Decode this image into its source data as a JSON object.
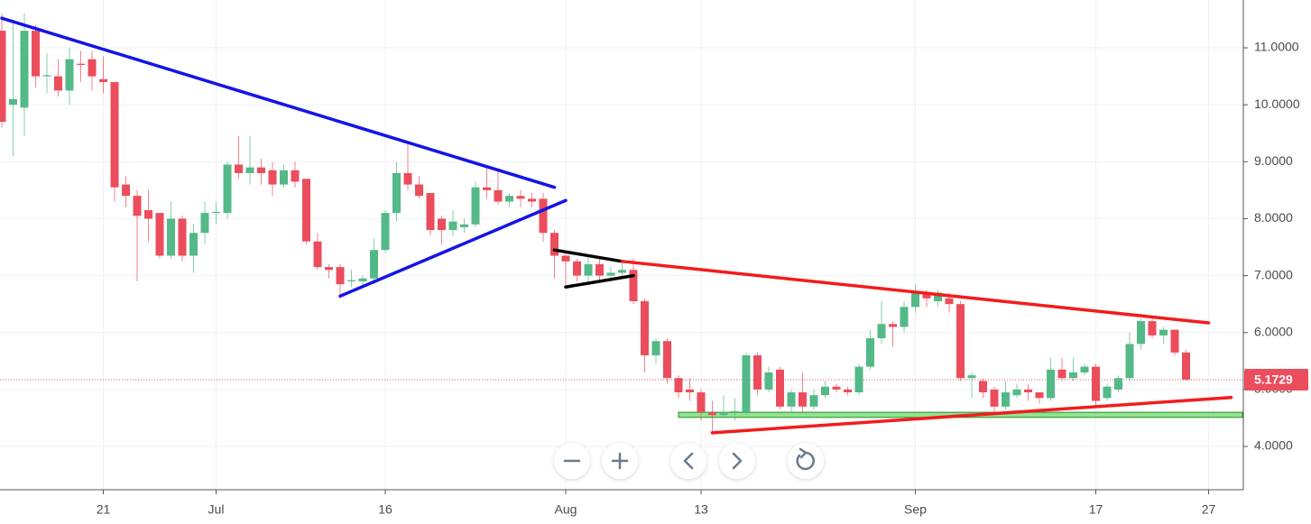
{
  "chart_data": {
    "type": "candlestick",
    "x": [
      "06-12",
      "06-13",
      "06-14",
      "06-15",
      "06-16",
      "06-17",
      "06-18",
      "06-19",
      "06-20",
      "06-21",
      "06-22",
      "06-23",
      "06-24",
      "06-25",
      "06-26",
      "06-27",
      "06-28",
      "06-29",
      "06-30",
      "07-01",
      "07-02",
      "07-03",
      "07-04",
      "07-05",
      "07-06",
      "07-07",
      "07-08",
      "07-09",
      "07-10",
      "07-11",
      "07-12",
      "07-13",
      "07-14",
      "07-15",
      "07-16",
      "07-17",
      "07-18",
      "07-19",
      "07-20",
      "07-21",
      "07-22",
      "07-23",
      "07-24",
      "07-25",
      "07-26",
      "07-27",
      "07-28",
      "07-29",
      "07-30",
      "07-31",
      "08-01",
      "08-02",
      "08-03",
      "08-04",
      "08-05",
      "08-06",
      "08-07",
      "08-08",
      "08-09",
      "08-10",
      "08-11",
      "08-12",
      "08-13",
      "08-14",
      "08-15",
      "08-16",
      "08-17",
      "08-18",
      "08-19",
      "08-20",
      "08-21",
      "08-22",
      "08-23",
      "08-24",
      "08-25",
      "08-26",
      "08-27",
      "08-28",
      "08-29",
      "08-30",
      "08-31",
      "09-01",
      "09-02",
      "09-03",
      "09-04",
      "09-05",
      "09-06",
      "09-07",
      "09-08",
      "09-09",
      "09-10",
      "09-11",
      "09-12",
      "09-13",
      "09-14",
      "09-15",
      "09-16",
      "09-17",
      "09-18",
      "09-19",
      "09-20",
      "09-21",
      "09-22",
      "09-23",
      "09-24",
      "09-25"
    ],
    "open": [
      11.3,
      10.0,
      9.95,
      11.3,
      10.5,
      10.5,
      10.25,
      10.72,
      10.8,
      10.45,
      10.4,
      8.6,
      8.4,
      8.15,
      8.1,
      7.35,
      8.0,
      7.35,
      7.75,
      8.1,
      8.1,
      8.95,
      8.8,
      8.9,
      8.85,
      8.6,
      8.85,
      8.7,
      7.6,
      7.15,
      7.15,
      6.9,
      6.9,
      6.95,
      7.45,
      8.1,
      8.8,
      8.6,
      8.45,
      8.0,
      7.8,
      7.85,
      7.9,
      8.55,
      8.5,
      8.3,
      8.4,
      8.35,
      8.35,
      7.75,
      7.35,
      7.25,
      7.0,
      7.2,
      7.0,
      7.05,
      7.1,
      6.55,
      5.6,
      5.85,
      5.2,
      5.0,
      4.95,
      4.6,
      4.55,
      4.6,
      4.6,
      5.6,
      5.0,
      5.35,
      4.7,
      4.95,
      4.7,
      4.9,
      5.05,
      5.0,
      4.95,
      5.4,
      5.9,
      6.15,
      6.1,
      6.45,
      6.7,
      6.55,
      6.6,
      6.5,
      5.2,
      5.15,
      5.0,
      4.7,
      4.9,
      5.0,
      4.95,
      4.85,
      5.35,
      5.2,
      5.3,
      5.4,
      4.85,
      5.0,
      5.2,
      5.8,
      6.2,
      5.95,
      6.05,
      5.65
    ],
    "high": [
      11.6,
      11.5,
      11.6,
      11.4,
      10.9,
      10.8,
      11.0,
      10.95,
      10.95,
      10.85,
      10.4,
      8.75,
      8.5,
      8.5,
      8.1,
      8.3,
      8.05,
      7.9,
      8.3,
      8.3,
      9.0,
      9.45,
      9.45,
      9.05,
      9.0,
      8.95,
      9.0,
      8.7,
      7.75,
      7.2,
      7.2,
      7.1,
      7.0,
      7.65,
      8.15,
      9.0,
      9.35,
      8.75,
      8.45,
      8.05,
      8.15,
      8.0,
      8.65,
      8.9,
      8.85,
      8.45,
      8.5,
      8.45,
      8.45,
      7.8,
      7.4,
      7.3,
      7.35,
      7.3,
      7.15,
      7.25,
      7.3,
      6.6,
      5.9,
      5.9,
      5.25,
      5.2,
      5.0,
      4.8,
      4.9,
      4.85,
      5.65,
      5.65,
      5.4,
      5.4,
      5.0,
      5.3,
      5.0,
      5.15,
      5.1,
      5.05,
      5.45,
      6.05,
      6.55,
      6.2,
      6.55,
      6.85,
      6.75,
      6.75,
      6.7,
      6.55,
      5.3,
      5.2,
      5.05,
      5.15,
      5.1,
      5.1,
      4.95,
      5.55,
      5.55,
      5.55,
      5.45,
      5.45,
      5.1,
      5.25,
      6.0,
      6.25,
      6.3,
      6.1,
      6.05,
      5.7
    ],
    "low": [
      9.6,
      9.1,
      9.45,
      10.3,
      10.2,
      10.15,
      10.0,
      10.4,
      10.25,
      10.2,
      8.3,
      8.2,
      6.9,
      7.6,
      7.3,
      7.3,
      7.25,
      7.05,
      7.55,
      7.9,
      8.0,
      8.7,
      8.6,
      8.6,
      8.4,
      8.55,
      8.55,
      7.55,
      7.1,
      6.95,
      6.6,
      6.8,
      6.8,
      6.85,
      7.4,
      7.95,
      8.5,
      8.35,
      7.7,
      7.55,
      7.7,
      7.75,
      7.85,
      8.35,
      8.25,
      8.2,
      8.2,
      8.2,
      7.6,
      6.95,
      6.8,
      6.9,
      6.85,
      6.9,
      6.9,
      6.95,
      6.5,
      5.3,
      5.45,
      5.1,
      4.85,
      4.8,
      4.45,
      4.2,
      4.5,
      4.45,
      4.55,
      4.9,
      4.95,
      4.65,
      4.6,
      4.6,
      4.65,
      4.85,
      4.95,
      4.9,
      4.9,
      5.35,
      5.8,
      5.75,
      6.0,
      6.35,
      6.45,
      6.45,
      6.35,
      5.15,
      4.85,
      4.85,
      4.6,
      4.65,
      4.85,
      4.8,
      4.75,
      4.8,
      5.15,
      5.15,
      5.25,
      4.7,
      4.8,
      4.95,
      5.15,
      5.7,
      5.9,
      5.8,
      5.6,
      5.15
    ],
    "close": [
      9.7,
      10.1,
      11.3,
      10.5,
      10.52,
      10.25,
      10.8,
      10.7,
      10.5,
      10.4,
      8.55,
      8.4,
      8.05,
      8.0,
      7.35,
      8.0,
      7.35,
      7.75,
      8.1,
      8.12,
      8.95,
      8.8,
      8.9,
      8.8,
      8.6,
      8.85,
      8.65,
      7.6,
      7.15,
      7.1,
      6.85,
      6.92,
      6.95,
      7.45,
      8.1,
      8.8,
      8.6,
      8.4,
      7.8,
      7.8,
      7.95,
      7.9,
      8.55,
      8.5,
      8.3,
      8.4,
      8.35,
      8.3,
      7.75,
      7.35,
      7.25,
      7.0,
      7.2,
      7.0,
      7.05,
      7.1,
      6.55,
      5.6,
      5.85,
      5.2,
      4.95,
      4.95,
      4.6,
      4.55,
      4.6,
      4.62,
      5.6,
      5.0,
      5.3,
      4.7,
      4.95,
      4.7,
      4.9,
      5.05,
      5.0,
      4.95,
      5.4,
      5.9,
      6.15,
      6.1,
      6.45,
      6.7,
      6.6,
      6.7,
      6.5,
      5.2,
      5.25,
      4.95,
      4.7,
      4.95,
      5.0,
      4.95,
      4.85,
      5.35,
      5.2,
      5.3,
      5.4,
      4.8,
      5.05,
      5.2,
      5.8,
      6.2,
      5.95,
      6.05,
      5.65,
      5.1729
    ],
    "up_color": "#53b987",
    "down_color": "#eb4d5c",
    "xlim": [
      "06-12",
      "09-30"
    ],
    "xticks": [
      {
        "value": "06-21",
        "label": "21"
      },
      {
        "value": "07-01",
        "label": "Jul"
      },
      {
        "value": "07-16",
        "label": "16"
      },
      {
        "value": "08-01",
        "label": "Aug"
      },
      {
        "value": "08-13",
        "label": "13"
      },
      {
        "value": "09-01",
        "label": "Sep"
      },
      {
        "value": "09-17",
        "label": "17"
      },
      {
        "value": "09-27",
        "label": "27"
      }
    ],
    "ylim": [
      3.24,
      11.84
    ],
    "yticks": [
      {
        "value": 4,
        "label": "4.0000"
      },
      {
        "value": 5,
        "label": "5.0000"
      },
      {
        "value": 6,
        "label": "6.0000"
      },
      {
        "value": 7,
        "label": "7.0000"
      },
      {
        "value": 8,
        "label": "8.0000"
      },
      {
        "value": 9,
        "label": "9.0000"
      },
      {
        "value": 10,
        "label": "10.0000"
      },
      {
        "value": 11,
        "label": "11.0000"
      }
    ],
    "grid": true,
    "last_price": 5.1729,
    "last_price_color": "#eb4d5c",
    "trendlines": [
      {
        "color": "#1414e6",
        "x": [
          "06-12",
          "07-31"
        ],
        "y": [
          11.52,
          8.55
        ]
      },
      {
        "color": "#1414e6",
        "x": [
          "07-12",
          "08-01"
        ],
        "y": [
          6.64,
          8.32
        ]
      },
      {
        "color": "#000000",
        "x": [
          "07-31",
          "08-06"
        ],
        "y": [
          7.45,
          7.25
        ]
      },
      {
        "color": "#000000",
        "x": [
          "08-01",
          "08-07"
        ],
        "y": [
          6.8,
          7.0
        ]
      },
      {
        "color": "#f21c1c",
        "x": [
          "08-06",
          "09-27"
        ],
        "y": [
          7.25,
          6.17
        ]
      },
      {
        "color": "#f21c1c",
        "x": [
          "08-14",
          "09-29"
        ],
        "y": [
          4.24,
          4.86
        ]
      }
    ],
    "zone": {
      "color": "#7ee07e",
      "x": [
        "08-11",
        "09-30"
      ],
      "y": [
        4.51,
        4.6
      ]
    }
  }
}
